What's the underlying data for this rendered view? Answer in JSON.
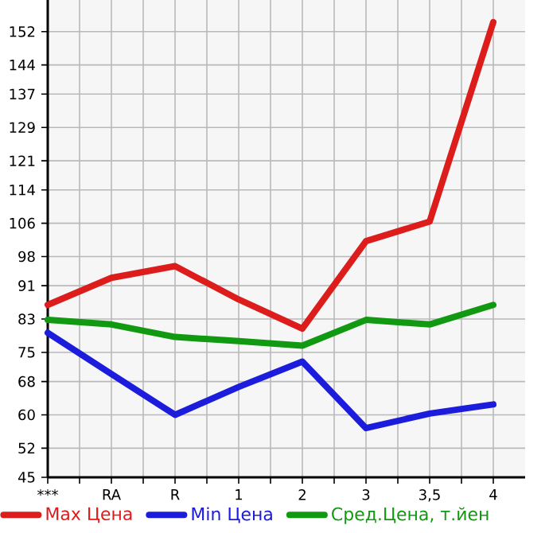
{
  "chart_data": {
    "type": "line",
    "categories": [
      "***",
      "RA",
      "R",
      "1",
      "2",
      "3",
      "3,5",
      "4"
    ],
    "series": [
      {
        "name": "Max Цена",
        "color": "#dd1c1c",
        "values": [
          86.4,
          92.9,
          95.7,
          87.7,
          80.7,
          101.7,
          106.4,
          154.3
        ]
      },
      {
        "name": "Min Цена",
        "color": "#1c1cdd",
        "values": [
          79.7,
          69.8,
          60.0,
          66.7,
          72.8,
          56.8,
          60.3,
          62.5
        ]
      },
      {
        "name": "Сред.Цена, т.йен",
        "color": "#119911",
        "values": [
          82.8,
          81.7,
          78.7,
          77.7,
          76.6,
          82.8,
          81.7,
          86.4
        ]
      }
    ],
    "ylim": [
      45,
      159.6
    ],
    "yticks": [
      45,
      52,
      60,
      68,
      75,
      83,
      91,
      98,
      106,
      114,
      121,
      129,
      137,
      144,
      152
    ],
    "grid": true,
    "legend": "bottom",
    "marker": "none",
    "line_style": "solid"
  }
}
